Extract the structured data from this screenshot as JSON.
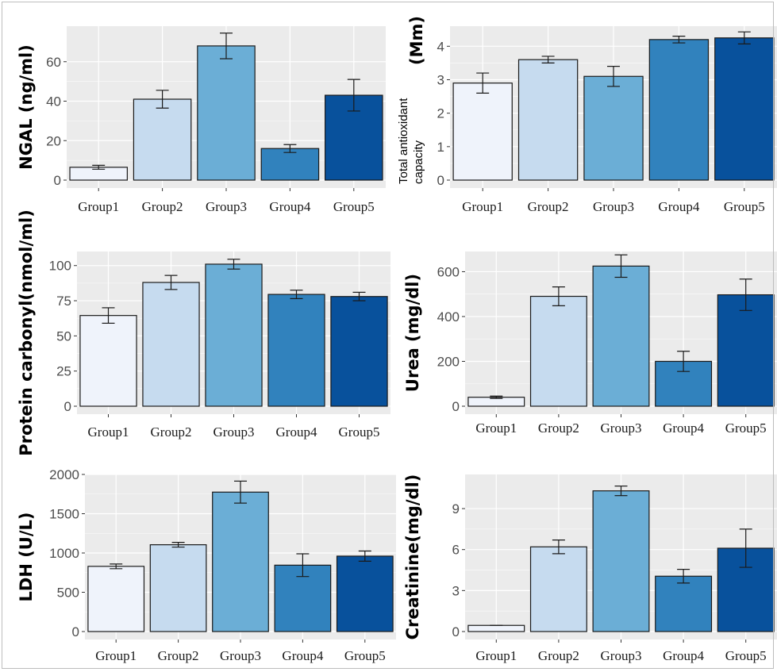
{
  "chart_data": [
    {
      "type": "bar",
      "categories": [
        "Group1",
        "Group2",
        "Group3",
        "Group4",
        "Group5"
      ],
      "values": [
        6.5,
        41,
        68,
        16,
        43
      ],
      "errors": [
        1,
        4.5,
        6.5,
        2,
        8
      ],
      "ylabel": "NGAL (ng/ml)",
      "ylim": [
        0,
        78
      ],
      "yticks": [
        0,
        20,
        40,
        60
      ],
      "grid": true
    },
    {
      "type": "bar",
      "categories": [
        "Group1",
        "Group2",
        "Group3",
        "Group4",
        "Group5"
      ],
      "values": [
        2.9,
        3.6,
        3.1,
        4.2,
        4.25
      ],
      "errors": [
        0.3,
        0.1,
        0.3,
        0.1,
        0.18
      ],
      "ylabel": "Total antioxidant capacity (Mm)",
      "ylabel_parts": [
        "Total antioxidant",
        "capacity",
        "(Mm)"
      ],
      "ylim": [
        0,
        4.6
      ],
      "yticks": [
        0,
        1,
        2,
        3,
        4
      ],
      "grid": true
    },
    {
      "type": "bar",
      "categories": [
        "Group1",
        "Group2",
        "Group3",
        "Group4",
        "Group5"
      ],
      "values": [
        64.5,
        88,
        101,
        79.5,
        78
      ],
      "errors": [
        5.5,
        5,
        3.5,
        3,
        3
      ],
      "ylabel": "Protein carbonyl(nmol/ml)",
      "ylim": [
        0,
        110
      ],
      "yticks": [
        0,
        25,
        50,
        75,
        100
      ],
      "grid": true
    },
    {
      "type": "bar",
      "categories": [
        "Group1",
        "Group2",
        "Group3",
        "Group4",
        "Group5"
      ],
      "values": [
        40,
        490,
        625,
        200,
        497
      ],
      "errors": [
        5,
        42,
        50,
        45,
        70
      ],
      "ylabel": "Urea (mg/dl)",
      "ylim": [
        0,
        690
      ],
      "yticks": [
        0,
        200,
        400,
        600
      ],
      "grid": true
    },
    {
      "type": "bar",
      "categories": [
        "Group1",
        "Group2",
        "Group3",
        "Group4",
        "Group5"
      ],
      "values": [
        830,
        1105,
        1775,
        845,
        960
      ],
      "errors": [
        30,
        30,
        140,
        145,
        65
      ],
      "ylabel": "LDH (U/L)",
      "ylim": [
        0,
        2000
      ],
      "yticks": [
        0,
        500,
        1000,
        1500,
        2000
      ],
      "grid": true
    },
    {
      "type": "bar",
      "categories": [
        "Group1",
        "Group2",
        "Group3",
        "Group4",
        "Group5"
      ],
      "values": [
        0.45,
        6.2,
        10.3,
        4.05,
        6.1
      ],
      "errors": [
        0,
        0.5,
        0.35,
        0.5,
        1.4
      ],
      "ylabel": "Creatinine(mg/dl)",
      "ylim": [
        0,
        11.5
      ],
      "yticks": [
        0,
        3,
        6,
        9
      ],
      "grid": true
    }
  ],
  "colors": {
    "panel_bg": "#ebebeb",
    "grid": "#ffffff",
    "bar_outline": "#1a1a1a",
    "bars": [
      "#eff3fb",
      "#c6dbef",
      "#6baed6",
      "#3182bd",
      "#08519c"
    ]
  }
}
